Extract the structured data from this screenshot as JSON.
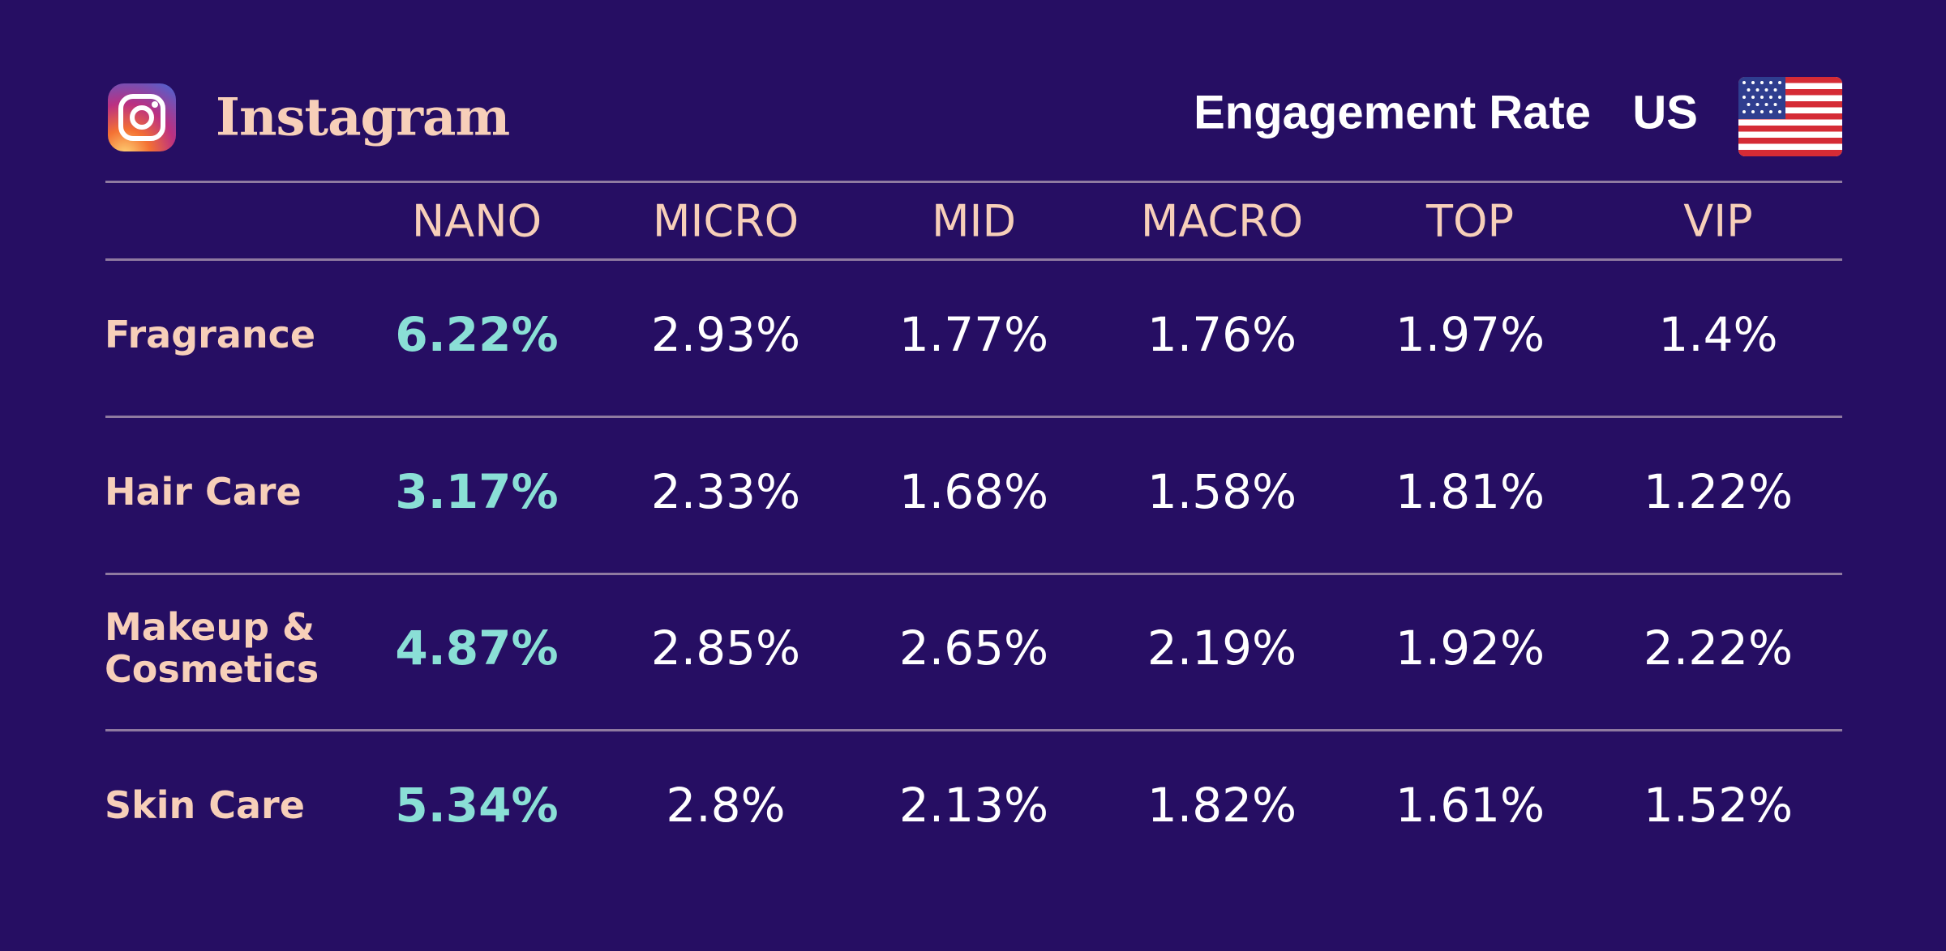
{
  "header": {
    "brand": "Instagram",
    "metric": "Engagement Rate",
    "country": "US"
  },
  "icons": {
    "logo": "instagram-logo-icon",
    "flag": "us-flag-icon"
  },
  "colors": {
    "background": "#260e63",
    "label": "#f7cfb9",
    "highlight": "#8adfd6",
    "value": "#ffffff",
    "rule": "#8f7aa0"
  },
  "chart_data": {
    "type": "table",
    "columns": [
      "NANO",
      "MICRO",
      "MID",
      "MACRO",
      "TOP",
      "VIP"
    ],
    "rows": [
      {
        "label": "Fragrance",
        "values": [
          "6.22%",
          "2.93%",
          "1.77%",
          "1.76%",
          "1.97%",
          "1.4%"
        ]
      },
      {
        "label": "Hair Care",
        "values": [
          "3.17%",
          "2.33%",
          "1.68%",
          "1.58%",
          "1.81%",
          "1.22%"
        ]
      },
      {
        "label": "Makeup &\nCosmetics",
        "values": [
          "4.87%",
          "2.85%",
          "2.65%",
          "2.19%",
          "1.92%",
          "2.22%"
        ]
      },
      {
        "label": "Skin Care",
        "values": [
          "5.34%",
          "2.8%",
          "2.13%",
          "1.82%",
          "1.61%",
          "1.52%"
        ]
      }
    ]
  }
}
